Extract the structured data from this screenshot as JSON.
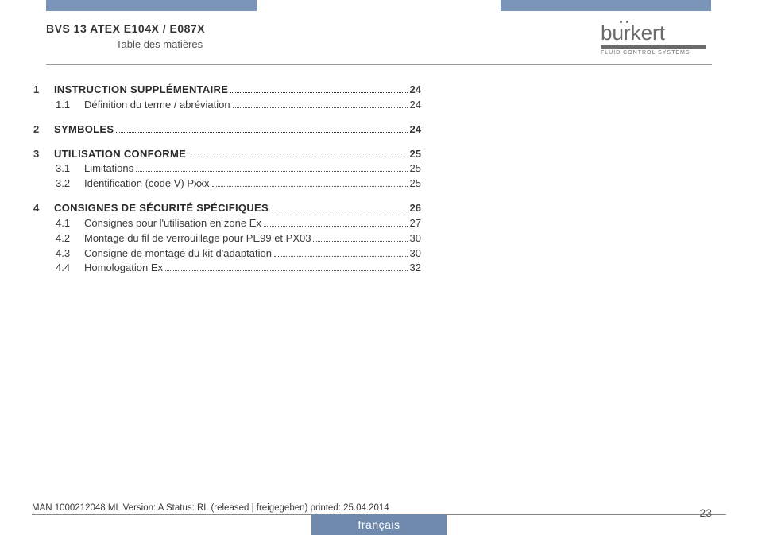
{
  "colors": {
    "accent": "#7a95b8",
    "tab": "#6f8aad",
    "text": "#3a3a3a",
    "logo": "#6b6b6b"
  },
  "header": {
    "doc_title": "BVS 13 ATEX E104X / E087X",
    "subtitle": "Table des matières"
  },
  "logo": {
    "brand": "burkert",
    "tagline": "FLUID CONTROL SYSTEMS"
  },
  "toc": [
    {
      "num": "1",
      "title": "Instruction supplémentaire",
      "page": "24",
      "items": [
        {
          "num": "1.1",
          "title": "Définition du terme / abréviation",
          "page": "24"
        }
      ]
    },
    {
      "num": "2",
      "title": "Symboles",
      "page": "24",
      "items": []
    },
    {
      "num": "3",
      "title": "Utilisation conforme",
      "page": "25",
      "items": [
        {
          "num": "3.1",
          "title": "Limitations",
          "page": "25"
        },
        {
          "num": "3.2",
          "title": "Identification (code V) Pxxx",
          "page": "25"
        }
      ]
    },
    {
      "num": "4",
      "title": "Consignes de sécurité spécifiques",
      "page": "26",
      "items": [
        {
          "num": "4.1",
          "title": "Consignes pour l'utilisation en zone Ex",
          "page": "27"
        },
        {
          "num": "4.2",
          "title": "Montage du fil de verrouillage pour PE99 et PX03",
          "page": "30"
        },
        {
          "num": "4.3",
          "title": "Consigne de montage du kit d'adaptation",
          "page": "30"
        },
        {
          "num": "4.4",
          "title": "Homologation Ex",
          "page": "32"
        }
      ]
    }
  ],
  "footer": {
    "meta": "MAN  1000212048  ML  Version: A Status: RL (released | freigegeben)  printed: 25.04.2014",
    "page_number": "23",
    "language": "français"
  }
}
